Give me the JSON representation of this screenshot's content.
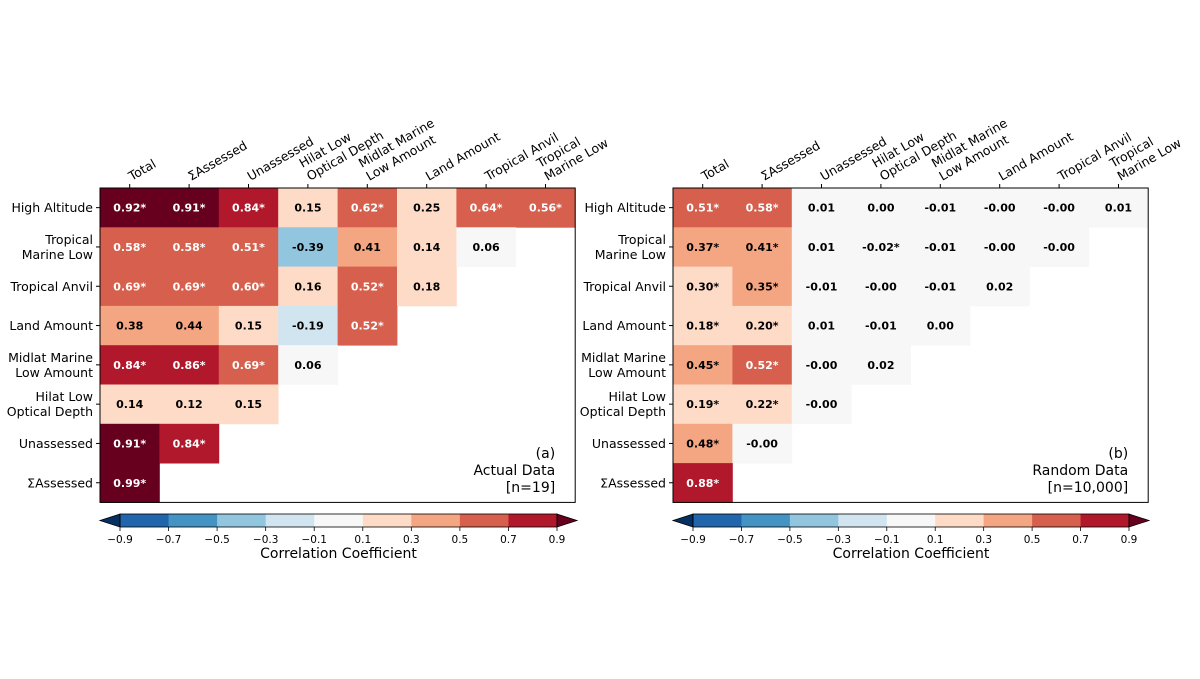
{
  "chart_data": [
    {
      "type": "heatmap",
      "panel_label": "(a)",
      "annotation_title": "Actual Data",
      "annotation_n": "[n=19]",
      "columns": [
        "Total",
        "ΣAssessed",
        "Unassessed",
        "Hilat Low\nOptical Depth",
        "Midlat Marine\nLow Amount",
        "Land Amount",
        "Tropical Anvil",
        "Tropical\nMarine Low"
      ],
      "rows": [
        "High Altitude",
        "Tropical\nMarine Low",
        "Tropical Anvil",
        "Land Amount",
        "Midlat Marine\nLow Amount",
        "Hilat Low\nOptical Depth",
        "Unassessed",
        "ΣAssessed"
      ],
      "values": [
        [
          0.92,
          0.91,
          0.84,
          0.15,
          0.62,
          0.25,
          0.64,
          0.56
        ],
        [
          0.58,
          0.58,
          0.51,
          -0.39,
          0.41,
          0.14,
          0.06
        ],
        [
          0.69,
          0.69,
          0.6,
          0.16,
          0.52,
          0.18
        ],
        [
          0.38,
          0.44,
          0.15,
          -0.19,
          0.52
        ],
        [
          0.84,
          0.86,
          0.69,
          0.06
        ],
        [
          0.14,
          0.12,
          0.15
        ],
        [
          0.91,
          0.84
        ],
        [
          0.99
        ]
      ],
      "labels": [
        [
          "0.92*",
          "0.91*",
          "0.84*",
          "0.15",
          "0.62*",
          "0.25",
          "0.64*",
          "0.56*"
        ],
        [
          "0.58*",
          "0.58*",
          "0.51*",
          "-0.39",
          "0.41",
          "0.14",
          "0.06"
        ],
        [
          "0.69*",
          "0.69*",
          "0.60*",
          "0.16",
          "0.52*",
          "0.18"
        ],
        [
          "0.38",
          "0.44",
          "0.15",
          "-0.19",
          "0.52*"
        ],
        [
          "0.84*",
          "0.86*",
          "0.69*",
          "0.06"
        ],
        [
          "0.14",
          "0.12",
          "0.15"
        ],
        [
          "0.91*",
          "0.84*"
        ],
        [
          "0.99*"
        ]
      ]
    },
    {
      "type": "heatmap",
      "panel_label": "(b)",
      "annotation_title": "Random Data",
      "annotation_n": "[n=10,000]",
      "columns": [
        "Total",
        "ΣAssessed",
        "Unassessed",
        "Hilat Low\nOptical Depth",
        "Midlat Marine\nLow Amount",
        "Land Amount",
        "Tropical Anvil",
        "Tropical\nMarine Low"
      ],
      "rows": [
        "High Altitude",
        "Tropical\nMarine Low",
        "Tropical Anvil",
        "Land Amount",
        "Midlat Marine\nLow Amount",
        "Hilat Low\nOptical Depth",
        "Unassessed",
        "ΣAssessed"
      ],
      "values": [
        [
          0.51,
          0.58,
          0.01,
          0.0,
          -0.01,
          -0.0,
          -0.0,
          0.01
        ],
        [
          0.37,
          0.41,
          0.01,
          -0.02,
          -0.01,
          -0.0,
          -0.0
        ],
        [
          0.3,
          0.35,
          -0.01,
          -0.0,
          -0.01,
          0.02
        ],
        [
          0.18,
          0.2,
          0.01,
          -0.01,
          0.0
        ],
        [
          0.45,
          0.52,
          -0.0,
          0.02
        ],
        [
          0.19,
          0.22,
          -0.0
        ],
        [
          0.48,
          -0.0
        ],
        [
          0.88
        ]
      ],
      "labels": [
        [
          "0.51*",
          "0.58*",
          "0.01",
          "0.00",
          "-0.01",
          "-0.00",
          "-0.00",
          "0.01"
        ],
        [
          "0.37*",
          "0.41*",
          "0.01",
          "-0.02*",
          "-0.01",
          "-0.00",
          "-0.00"
        ],
        [
          "0.30*",
          "0.35*",
          "-0.01",
          "-0.00",
          "-0.01",
          "0.02"
        ],
        [
          "0.18*",
          "0.20*",
          "0.01",
          "-0.01",
          "0.00"
        ],
        [
          "0.45*",
          "0.52*",
          "-0.00",
          "0.02"
        ],
        [
          "0.19*",
          "0.22*",
          "-0.00"
        ],
        [
          "0.48*",
          "-0.00"
        ],
        [
          "0.88*"
        ]
      ]
    }
  ],
  "colorbar": {
    "label": "Correlation Coefficient",
    "ticks": [
      "−0.9",
      "−0.7",
      "−0.5",
      "−0.3",
      "−0.1",
      "0.1",
      "0.3",
      "0.5",
      "0.7",
      "0.9"
    ],
    "bounds": [
      -0.9,
      -0.7,
      -0.5,
      -0.3,
      -0.1,
      0.1,
      0.3,
      0.5,
      0.7,
      0.9
    ],
    "colors": [
      "#2166ac",
      "#4393c3",
      "#92c5de",
      "#d1e5f0",
      "#f7f7f7",
      "#fddbc7",
      "#f4a582",
      "#d6604d",
      "#b2182b"
    ],
    "under_color": "#053061",
    "over_color": "#67001f"
  }
}
